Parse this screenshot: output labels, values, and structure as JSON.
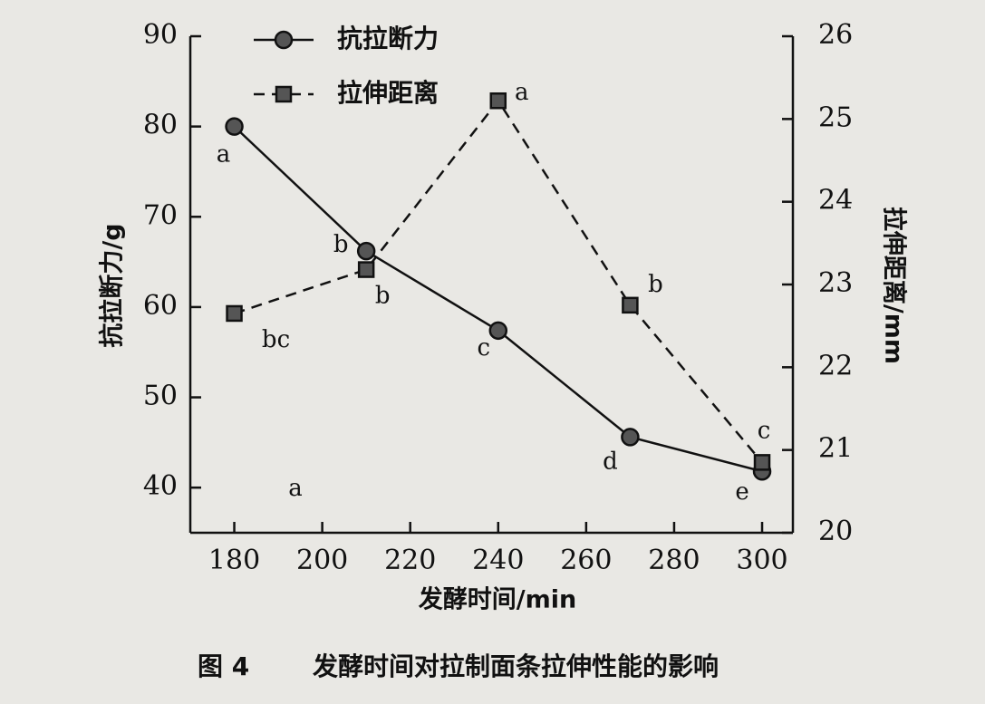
{
  "chart_data": {
    "type": "line",
    "x": [
      180,
      210,
      240,
      270,
      300
    ],
    "xlim": [
      170,
      307
    ],
    "xticks": [
      180,
      200,
      220,
      240,
      260,
      280,
      300
    ],
    "ylim": [
      35,
      90
    ],
    "yticks": [
      40,
      50,
      60,
      70,
      80,
      90
    ],
    "y2lim": [
      20,
      26
    ],
    "y2ticks": [
      20,
      21,
      22,
      23,
      24,
      25,
      26
    ],
    "xlabel": "发酵时间/min",
    "ylabel": "抗拉断力/g",
    "y2label": "拉伸距离/mm",
    "figure_label": "图 4",
    "caption": "发酵时间对拉制面条拉伸性能的影响",
    "legend": "upper left",
    "series": [
      {
        "name": "抗拉断力",
        "color": "#111111",
        "marker": "circle",
        "dash": "solid",
        "values": [
          80.0,
          66.2,
          57.4,
          45.6,
          41.8
        ],
        "point_labels": [
          "a",
          "b",
          "c",
          "d",
          "e"
        ]
      },
      {
        "name": "拉伸距离",
        "color": "#111111",
        "marker": "square",
        "dash": "dashed",
        "axis": "y2",
        "values": [
          22.65,
          23.18,
          25.22,
          22.75,
          20.85
        ],
        "point_labels": [
          "bc",
          "b",
          "a",
          "b",
          "c"
        ]
      }
    ],
    "annotations": [
      "a"
    ]
  }
}
